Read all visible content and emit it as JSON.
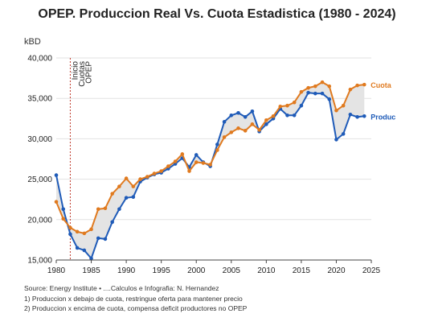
{
  "title": "OPEP. Produccion Real Vs. Cuota Estadistica (1980 - 2024)",
  "y_unit": "kBD",
  "annotation_lines": [
    "Inicio",
    "Cuotas",
    "OPEP"
  ],
  "source": "Source: Energy Institute • ....Calculos e Infografia: N. Hernandez",
  "note1": "1) Produccion x debajo de cuota, restringue oferta para mantener precio",
  "note2": "2) Produccion x encima de cuota, compensa deficit productores no OPEP",
  "colors": {
    "produccion": "#1f5bb8",
    "cuota": "#e07a1f",
    "fill": "#e4e4e4",
    "annotation": "#c0392b"
  },
  "chart_data": {
    "type": "line",
    "title": "OPEP. Produccion Real Vs. Cuota Estadistica (1980 - 2024)",
    "ylabel": "kBD",
    "xlabel": "",
    "xlim": [
      1980,
      2025
    ],
    "ylim": [
      15000,
      40000
    ],
    "x_ticks": [
      1980,
      1985,
      1990,
      1995,
      2000,
      2005,
      2010,
      2015,
      2020,
      2025
    ],
    "y_ticks": [
      15000,
      20000,
      25000,
      30000,
      35000,
      40000
    ],
    "y_tick_labels": [
      "15,000",
      "20,000",
      "25,000",
      "30,000",
      "35,000",
      "40,000"
    ],
    "annotation_year": 1982,
    "grid": "horizontal",
    "x": [
      1980,
      1981,
      1982,
      1983,
      1984,
      1985,
      1986,
      1987,
      1988,
      1989,
      1990,
      1991,
      1992,
      1993,
      1994,
      1995,
      1996,
      1997,
      1998,
      1999,
      2000,
      2001,
      2002,
      2003,
      2004,
      2005,
      2006,
      2007,
      2008,
      2009,
      2010,
      2011,
      2012,
      2013,
      2014,
      2015,
      2016,
      2017,
      2018,
      2019,
      2020,
      2021,
      2022,
      2023,
      2024
    ],
    "series": [
      {
        "name": "Produc",
        "values": [
          25500,
          21300,
          18200,
          16500,
          16200,
          15200,
          17700,
          17600,
          19700,
          21300,
          22700,
          22800,
          24700,
          25200,
          25600,
          25800,
          26300,
          26900,
          27600,
          26500,
          28000,
          27100,
          26600,
          29300,
          32100,
          32900,
          33200,
          32700,
          33400,
          30900,
          31800,
          32500,
          33700,
          32900,
          32900,
          34100,
          35700,
          35600,
          35600,
          34900,
          29900,
          30600,
          33000,
          32700,
          32800
        ]
      },
      {
        "name": "Cuota",
        "values": [
          22200,
          20100,
          19000,
          18500,
          18300,
          18800,
          21300,
          21400,
          23200,
          24100,
          25100,
          24100,
          25000,
          25300,
          25700,
          26000,
          26600,
          27200,
          28100,
          26000,
          27100,
          27000,
          26800,
          28600,
          30200,
          30800,
          31300,
          31000,
          31800,
          31100,
          32300,
          32800,
          34000,
          34100,
          34500,
          35800,
          36300,
          36500,
          37000,
          36500,
          33500,
          34100,
          36100,
          36600,
          36700
        ]
      }
    ],
    "legend": "right-end labels"
  }
}
